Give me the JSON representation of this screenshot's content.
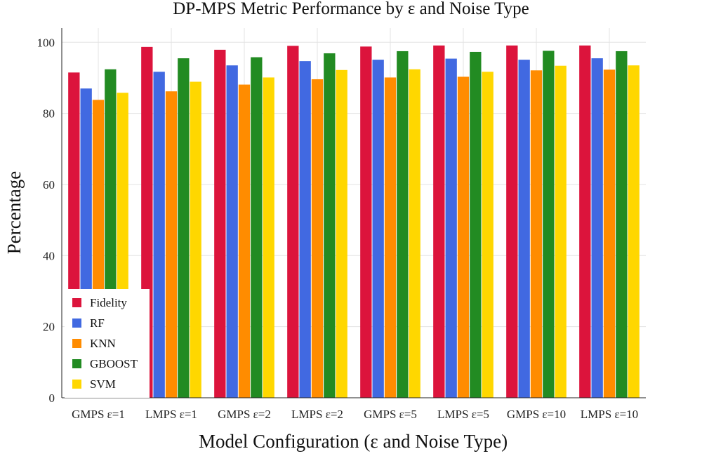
{
  "chart_data": {
    "type": "bar",
    "title": "DP-MPS Metric Performance by ε and Noise Type",
    "xlabel": "Model Configuration (ε and Noise Type)",
    "ylabel": "Percentage",
    "ylim": [
      0,
      104
    ],
    "yticks": [
      0,
      20,
      40,
      60,
      80,
      100
    ],
    "grid": true,
    "legend_position": "bottom-left",
    "categories": [
      "GMPS ε=1",
      "LMPS ε=1",
      "GMPS ε=2",
      "LMPS ε=2",
      "GMPS ε=5",
      "LMPS ε=5",
      "GMPS ε=10",
      "LMPS ε=10"
    ],
    "series": [
      {
        "name": "Fidelity",
        "color": "#dc143c",
        "values": [
          91.5,
          98.7,
          97.9,
          99.0,
          98.8,
          99.1,
          99.1,
          99.1
        ]
      },
      {
        "name": "RF",
        "color": "#4169e1",
        "values": [
          87.0,
          91.7,
          93.5,
          94.7,
          95.1,
          95.4,
          95.1,
          95.5
        ]
      },
      {
        "name": "KNN",
        "color": "#ff8c00",
        "values": [
          83.8,
          86.2,
          88.1,
          89.6,
          90.1,
          90.3,
          92.1,
          92.3
        ]
      },
      {
        "name": "GBOOST",
        "color": "#228b22",
        "values": [
          92.4,
          95.5,
          95.8,
          96.9,
          97.5,
          97.3,
          97.6,
          97.5
        ]
      },
      {
        "name": "SVM",
        "color": "#ffd700",
        "values": [
          85.8,
          88.9,
          90.1,
          92.2,
          92.4,
          91.7,
          93.4,
          93.5
        ]
      }
    ]
  }
}
